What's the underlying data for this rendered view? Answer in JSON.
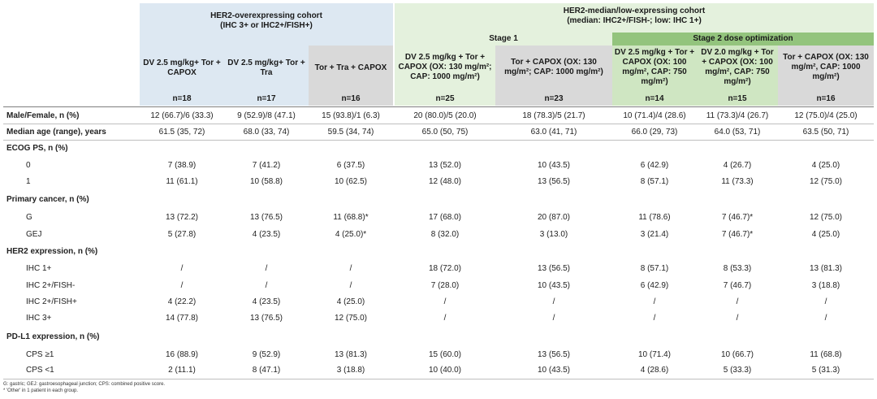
{
  "header": {
    "her2_over_title": "HER2-overexpressing cohort",
    "her2_over_sub": "(IHC 3+ or IHC2+/FISH+)",
    "her2_low_title": "HER2-median/low-expressing cohort",
    "her2_low_sub": "(median: IHC2+/FISH-; low: IHC 1+)",
    "stage1": "Stage 1",
    "stage2": "Stage 2  dose optimization",
    "arms": [
      {
        "name": "DV 2.5 mg/kg+ Tor + CAPOX",
        "n": "n=18"
      },
      {
        "name": "DV 2.5 mg/kg+ Tor + Tra",
        "n": "n=17"
      },
      {
        "name": "Tor + Tra + CAPOX",
        "n": "n=16"
      },
      {
        "name": "DV 2.5 mg/kg + Tor + CAPOX (OX: 130 mg/m²; CAP: 1000 mg/m²)",
        "n": "n=25"
      },
      {
        "name": "Tor + CAPOX (OX: 130 mg/m²; CAP: 1000 mg/m²)",
        "n": "n=23"
      },
      {
        "name": "DV 2.5 mg/kg + Tor + CAPOX (OX: 100 mg/m², CAP: 750 mg/m²)",
        "n": "n=14"
      },
      {
        "name": "DV 2.0 mg/kg + Tor + CAPOX (OX: 100 mg/m², CAP: 750 mg/m²)",
        "n": "n=15"
      },
      {
        "name": "Tor + CAPOX (OX: 130 mg/m², CAP: 1000 mg/m²)",
        "n": "n=16"
      }
    ]
  },
  "rows": [
    {
      "label": "Male/Female, n (%)",
      "type": "bold",
      "values": [
        "12 (66.7)/6 (33.3)",
        "9 (52.9)/8 (47.1)",
        "15 (93.8)/1 (6.3)",
        "20 (80.0)/5 (20.0)",
        "18 (78.3)/5 (21.7)",
        "10 (71.4)/4 (28.6)",
        "11 (73.3)/4 (26.7)",
        "12 (75.0)/4 (25.0)"
      ]
    },
    {
      "label": "Median age (range), years",
      "type": "bold",
      "values": [
        "61.5 (35, 72)",
        "68.0 (33, 74)",
        "59.5 (34, 74)",
        "65.0 (50, 75)",
        "63.0 (41, 71)",
        "66.0 (29, 73)",
        "64.0 (53, 71)",
        "63.5 (50, 71)"
      ]
    },
    {
      "label": "ECOG PS, n (%)",
      "type": "section",
      "values": []
    },
    {
      "label": "0",
      "type": "sub",
      "values": [
        "7 (38.9)",
        "7 (41.2)",
        "6 (37.5)",
        "13 (52.0)",
        "10 (43.5)",
        "6 (42.9)",
        "4 (26.7)",
        "4 (25.0)"
      ]
    },
    {
      "label": "1",
      "type": "sub",
      "values": [
        "11 (61.1)",
        "10 (58.8)",
        "10 (62.5)",
        "12 (48.0)",
        "13 (56.5)",
        "8 (57.1)",
        "11 (73.3)",
        "12 (75.0)"
      ]
    },
    {
      "label": "Primary cancer, n (%)",
      "type": "section",
      "values": []
    },
    {
      "label": "G",
      "type": "sub",
      "values": [
        "13 (72.2)",
        "13 (76.5)",
        "11 (68.8)*",
        "17 (68.0)",
        "20 (87.0)",
        "11 (78.6)",
        "7 (46.7)*",
        "12 (75.0)"
      ]
    },
    {
      "label": "GEJ",
      "type": "sub",
      "values": [
        "5 (27.8)",
        "4 (23.5)",
        "4 (25.0)*",
        "8 (32.0)",
        "3 (13.0)",
        "3 (21.4)",
        "7 (46.7)*",
        "4 (25.0)"
      ]
    },
    {
      "label": "HER2 expression, n (%)",
      "type": "section",
      "values": []
    },
    {
      "label": "IHC 1+",
      "type": "sub",
      "values": [
        "/",
        "/",
        "/",
        "18 (72.0)",
        "13 (56.5)",
        "8 (57.1)",
        "8 (53.3)",
        "13 (81.3)"
      ]
    },
    {
      "label": "IHC 2+/FISH-",
      "type": "sub",
      "values": [
        "/",
        "/",
        "/",
        "7 (28.0)",
        "10 (43.5)",
        "6 (42.9)",
        "7 (46.7)",
        "3 (18.8)"
      ]
    },
    {
      "label": "IHC 2+/FISH+",
      "type": "sub",
      "values": [
        "4 (22.2)",
        "4 (23.5)",
        "4 (25.0)",
        "/",
        "/",
        "/",
        "/",
        "/"
      ]
    },
    {
      "label": "IHC 3+",
      "type": "sub",
      "values": [
        "14 (77.8)",
        "13 (76.5)",
        "12 (75.0)",
        "/",
        "/",
        "/",
        "/",
        "/"
      ]
    },
    {
      "label": "PD-L1 expression, n (%)",
      "type": "section",
      "values": []
    },
    {
      "label": "CPS ≥1",
      "type": "sub",
      "values": [
        "16 (88.9)",
        "9 (52.9)",
        "13 (81.3)",
        "15 (60.0)",
        "13 (56.5)",
        "10 (71.4)",
        "10 (66.7)",
        "11 (68.8)"
      ]
    },
    {
      "label": "CPS <1",
      "type": "sub",
      "values": [
        "2 (11.1)",
        "8 (47.1)",
        "3 (18.8)",
        "10 (40.0)",
        "10 (43.5)",
        "4 (28.6)",
        "5 (33.3)",
        "5 (31.3)"
      ]
    }
  ],
  "footnotes": [
    "G: gastric; GEJ: gastroesophageal junction; CPS: combined positive score.",
    "* 'Other' in 1 patient in each group."
  ]
}
